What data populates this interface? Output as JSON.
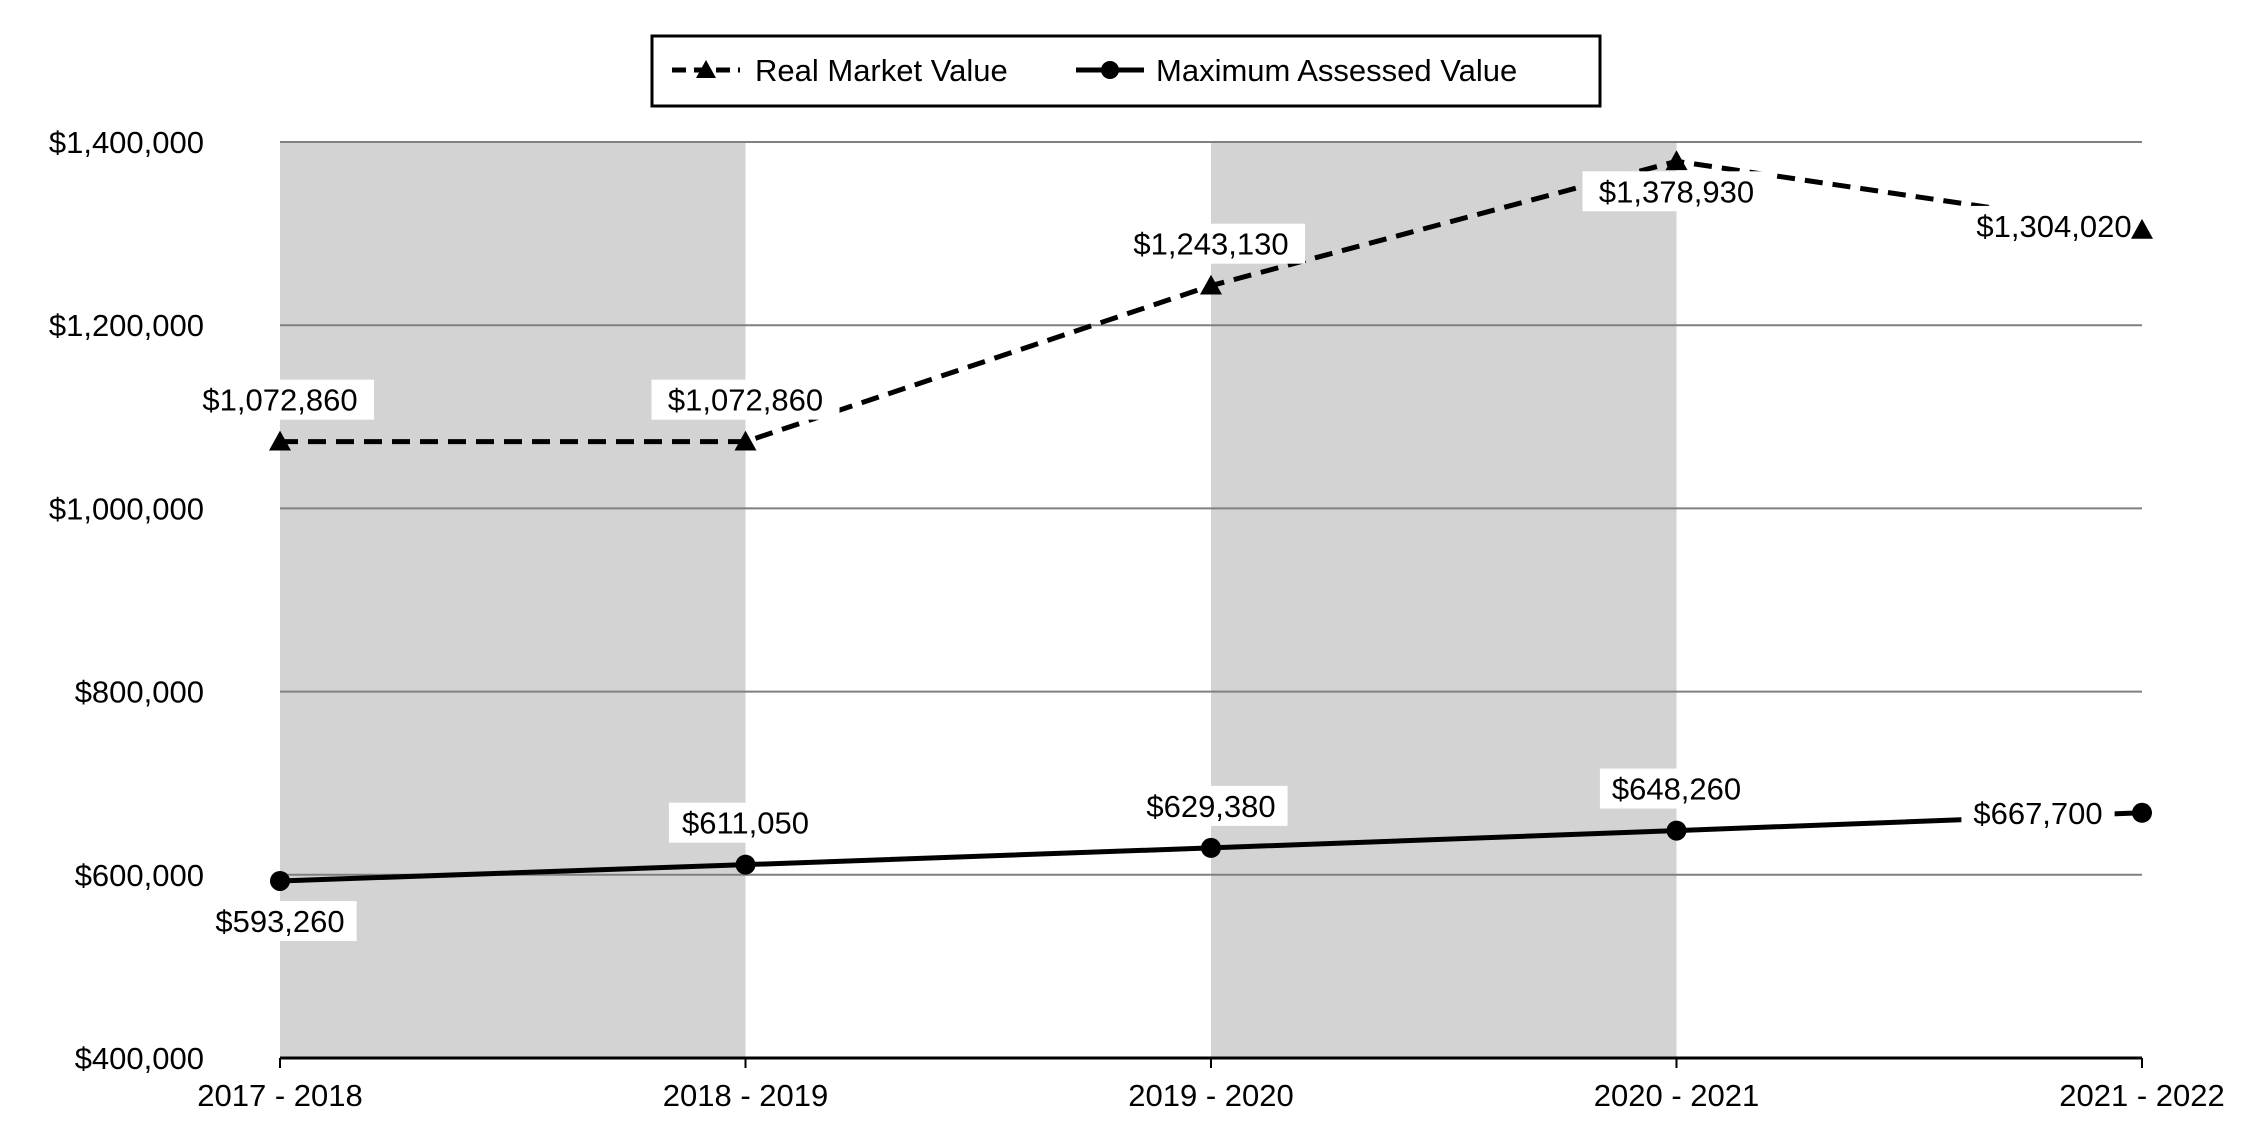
{
  "chart_data": {
    "type": "line",
    "categories": [
      "2017 - 2018",
      "2018 - 2019",
      "2019 - 2020",
      "2020 - 2021",
      "2021 - 2022"
    ],
    "series": [
      {
        "name": "Real Market Value",
        "values": [
          1072860,
          1072860,
          1243130,
          1378930,
          1304020
        ],
        "labels": [
          "$1,072,860",
          "$1,072,860",
          "$1,243,130",
          "$1,378,930",
          "$1,304,020"
        ],
        "line_style": "dashed",
        "marker": "triangle",
        "color": "#000000"
      },
      {
        "name": "Maximum Assessed Value",
        "values": [
          593260,
          611050,
          629380,
          648260,
          667700
        ],
        "labels": [
          "$593,260",
          "$611,050",
          "$629,380",
          "$648,260",
          "$667,700"
        ],
        "line_style": "solid",
        "marker": "circle",
        "color": "#000000"
      }
    ],
    "ylim": [
      400000,
      1400000
    ],
    "yticks": [
      400000,
      600000,
      800000,
      1000000,
      1200000,
      1400000
    ],
    "ytick_labels": [
      "$400,000",
      "$600,000",
      "$800,000",
      "$1,000,000",
      "$1,200,000",
      "$1,400,000"
    ],
    "grid": true,
    "alternating_band_color": "#d3d3d3",
    "legend_position": "top-center",
    "title": "",
    "xlabel": "",
    "ylabel": ""
  }
}
